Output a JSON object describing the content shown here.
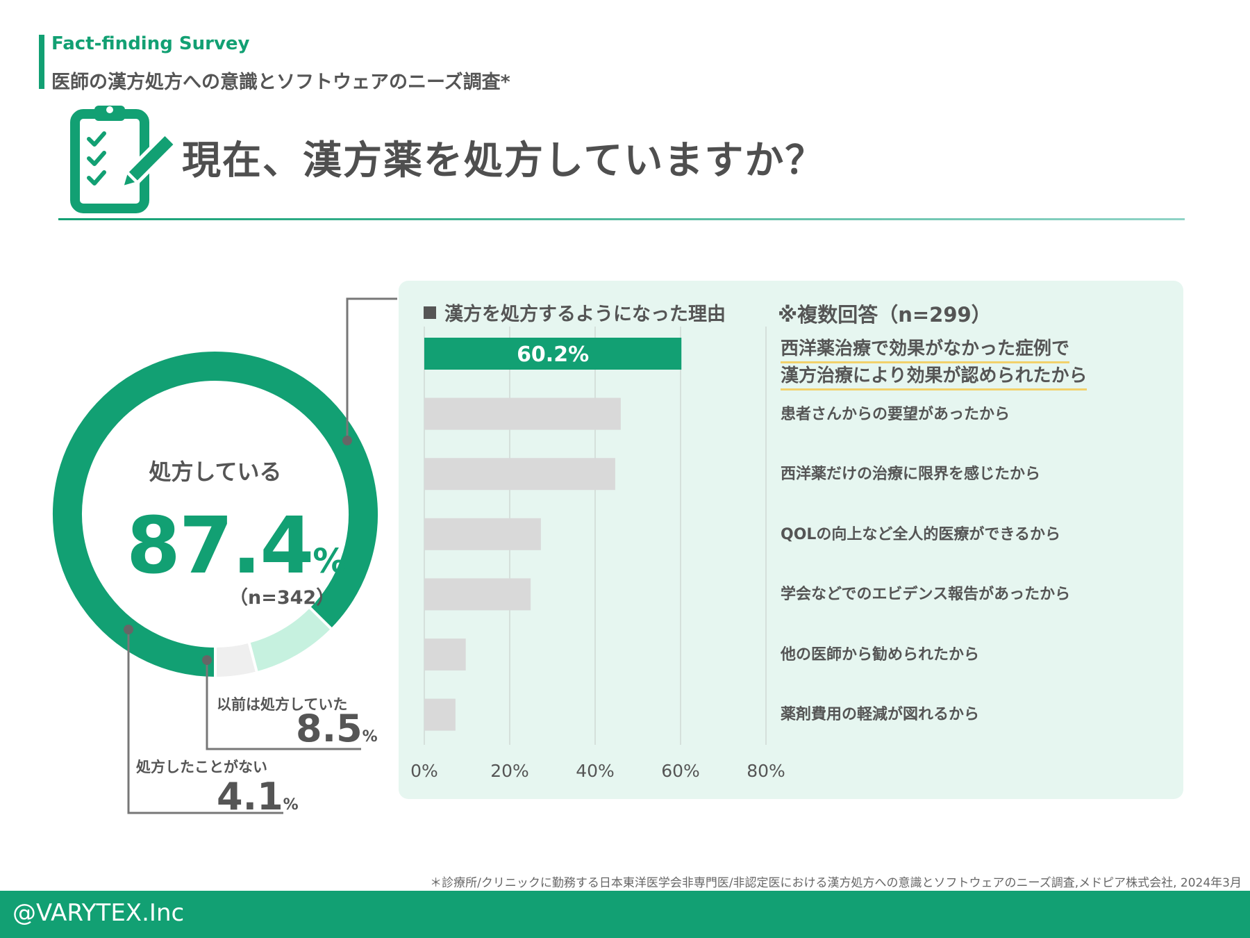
{
  "header": {
    "eyebrow": "Fact-finding Survey",
    "subtitle": "医師の漢方処方への意識とソフトウェアのニーズ調査*",
    "icon": "clipboard-check-icon",
    "title": "現在、漢方薬を処方していますか？"
  },
  "colors": {
    "accent": "#12a073",
    "light_accent": "#c6f1df",
    "gray": "#d9d9d9",
    "panel_bg": "#e6f6f0",
    "highlight": "#f2d16b"
  },
  "donut": {
    "center_label": "処方している",
    "main_value": "87.4",
    "main_unit": "%",
    "main_n": "（n=342）",
    "prev_label": "以前は処方していた",
    "prev_value": "8.5",
    "prev_unit": "%",
    "never_label": "処方したことがない",
    "never_value": "4.1",
    "never_unit": "%"
  },
  "panel": {
    "title": "漢方を処方するようになった理由",
    "note": "※複数回答（n=299）",
    "highlight_reason_line1": "西洋薬治療で効果がなかった症例で",
    "highlight_reason_line2": "漢方治療により効果が認められたから",
    "top_value_label": "60.2%"
  },
  "chart_data": [
    {
      "type": "pie",
      "categories": [
        "処方している",
        "以前は処方していた",
        "処方したことがない"
      ],
      "values": [
        87.4,
        8.5,
        4.1
      ],
      "unit": "%",
      "n": 342
    },
    {
      "type": "bar",
      "orientation": "horizontal",
      "categories": [
        "西洋薬治療で効果がなかった症例で漢方治療により効果が認められたから",
        "患者さんからの要望があったから",
        "西洋薬だけの治療に限界を感じたから",
        "QOLの向上など全人的医療ができるから",
        "学会などでのエビデンス報告があったから",
        "他の医師から勧められたから",
        "薬剤費用の軽減が図れるから"
      ],
      "values": [
        60.2,
        46,
        44.7,
        27.3,
        24.9,
        9.7,
        7.3
      ],
      "data_labels": [
        "60.2%"
      ],
      "xlim": [
        0,
        80
      ],
      "x_ticks": [
        "0%",
        "20%",
        "40%",
        "60%",
        "80%"
      ],
      "grid": true
    }
  ],
  "footnote": "＊診療所/クリニックに勤務する日本東洋医学会非専門医/非認定医における漢方処方への意識とソフトウェアのニーズ調査,メドピア株式会社, 2024年3月",
  "footer": {
    "credit": "@VARYTEX.Inc"
  }
}
